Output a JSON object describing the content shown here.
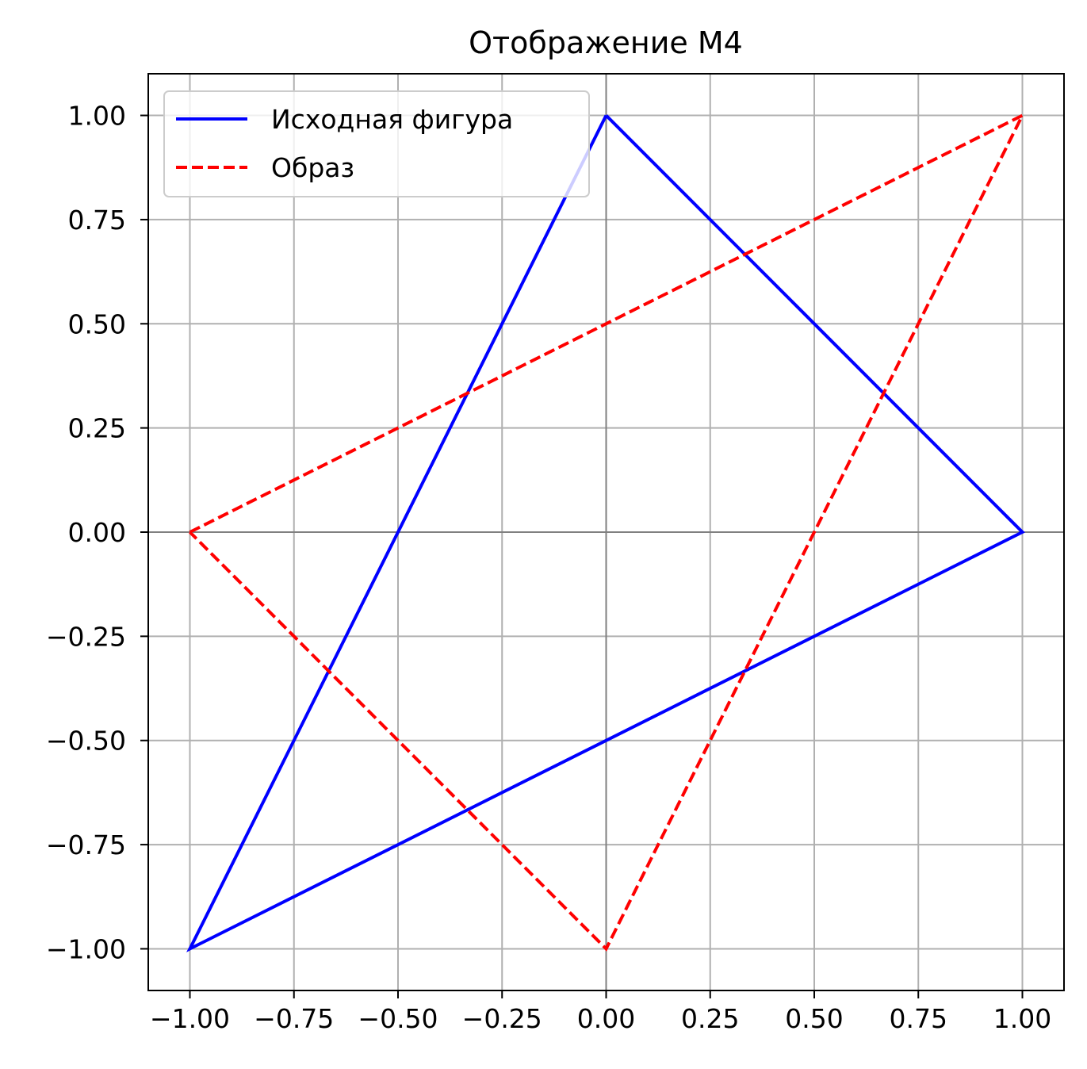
{
  "chart_data": {
    "type": "line",
    "title": "Отображение M4",
    "xlabel": "",
    "ylabel": "",
    "xlim": [
      -1.1,
      1.1
    ],
    "ylim": [
      -1.1,
      1.1
    ],
    "grid": true,
    "legend_placement": "top-left",
    "x_ticks": [
      -1.0,
      -0.75,
      -0.5,
      -0.25,
      0.0,
      0.25,
      0.5,
      0.75,
      1.0
    ],
    "y_ticks": [
      -1.0,
      -0.75,
      -0.5,
      -0.25,
      0.0,
      0.25,
      0.5,
      0.75,
      1.0
    ],
    "x_tick_labels": [
      "−1.00",
      "−0.75",
      "−0.50",
      "−0.25",
      "0.00",
      "0.25",
      "0.50",
      "0.75",
      "1.00"
    ],
    "y_tick_labels": [
      "−1.00",
      "−0.75",
      "−0.50",
      "−0.25",
      "0.00",
      "0.25",
      "0.50",
      "0.75",
      "1.00"
    ],
    "reference_lines": {
      "x": 0,
      "y": 0,
      "color": "#808080"
    },
    "series": [
      {
        "name": "Исходная фигура",
        "color": "#0000ff",
        "style": "solid",
        "points": [
          [
            0,
            1
          ],
          [
            1,
            0
          ],
          [
            -1,
            -1
          ],
          [
            0,
            1
          ]
        ]
      },
      {
        "name": "Образ",
        "color": "#ff0000",
        "style": "dashed",
        "points": [
          [
            -1,
            0
          ],
          [
            1,
            1
          ],
          [
            0,
            -1
          ],
          [
            -1,
            0
          ]
        ]
      }
    ]
  }
}
